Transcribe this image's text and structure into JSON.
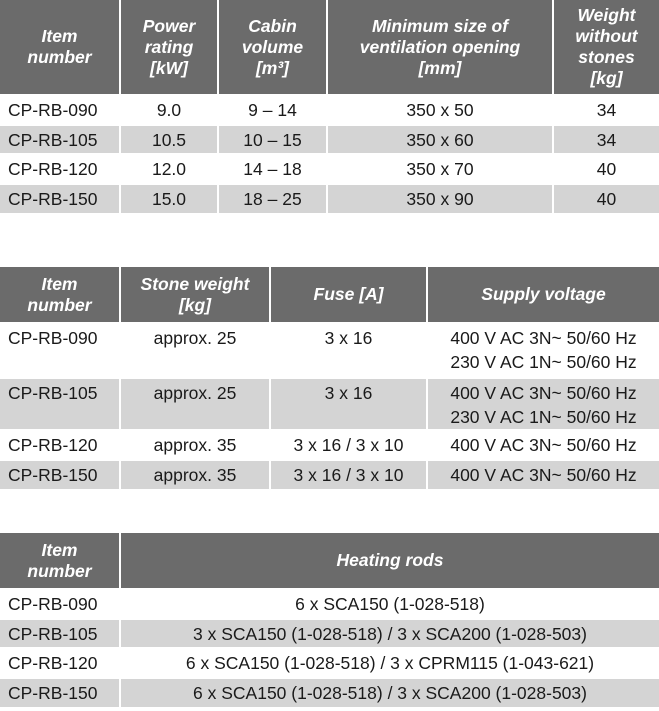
{
  "colors": {
    "header_bg": "#6b6b6b",
    "alt_row_bg": "#d4d4d4",
    "header_text": "#ffffff"
  },
  "tables": [
    {
      "headers": [
        [
          "Item",
          "number"
        ],
        [
          "Power",
          "rating",
          "[kW]"
        ],
        [
          "Cabin",
          "volume",
          "[m³]"
        ],
        [
          "Minimum size of",
          "ventilation opening",
          "[mm]"
        ],
        [
          "Weight",
          "without",
          "stones",
          "[kg]"
        ]
      ],
      "rows": [
        [
          [
            "CP-RB-090"
          ],
          [
            "9.0"
          ],
          [
            "9 – 14"
          ],
          [
            "350 x 50"
          ],
          [
            "34"
          ]
        ],
        [
          [
            "CP-RB-105"
          ],
          [
            "10.5"
          ],
          [
            "10 – 15"
          ],
          [
            "350 x 60"
          ],
          [
            "34"
          ]
        ],
        [
          [
            "CP-RB-120"
          ],
          [
            "12.0"
          ],
          [
            "14 – 18"
          ],
          [
            "350 x 70"
          ],
          [
            "40"
          ]
        ],
        [
          [
            "CP-RB-150"
          ],
          [
            "15.0"
          ],
          [
            "18 – 25"
          ],
          [
            "350 x 90"
          ],
          [
            "40"
          ]
        ]
      ]
    },
    {
      "headers": [
        [
          "Item",
          "number"
        ],
        [
          "Stone weight",
          "[kg]"
        ],
        [
          "Fuse [A]"
        ],
        [
          "Supply voltage"
        ]
      ],
      "rows": [
        [
          [
            "CP-RB-090"
          ],
          [
            "approx. 25"
          ],
          [
            "3 x 16"
          ],
          [
            "400 V AC 3N~ 50/60 Hz",
            "230 V AC 1N~ 50/60 Hz"
          ]
        ],
        [
          [
            "CP-RB-105"
          ],
          [
            "approx. 25"
          ],
          [
            "3 x 16"
          ],
          [
            "400 V AC 3N~ 50/60 Hz",
            "230 V AC 1N~ 50/60 Hz"
          ]
        ],
        [
          [
            "CP-RB-120"
          ],
          [
            "approx. 35"
          ],
          [
            "3 x 16 / 3 x 10"
          ],
          [
            "400 V AC 3N~ 50/60 Hz"
          ]
        ],
        [
          [
            "CP-RB-150"
          ],
          [
            "approx. 35"
          ],
          [
            "3 x 16 / 3 x 10"
          ],
          [
            "400 V AC 3N~ 50/60 Hz"
          ]
        ]
      ]
    },
    {
      "headers": [
        [
          "Item",
          "number"
        ],
        [
          "Heating rods"
        ]
      ],
      "rows": [
        [
          [
            "CP-RB-090"
          ],
          [
            "6 x SCA150 (1-028-518)"
          ]
        ],
        [
          [
            "CP-RB-105"
          ],
          [
            "3 x SCA150 (1-028-518) / 3 x SCA200 (1-028-503)"
          ]
        ],
        [
          [
            "CP-RB-120"
          ],
          [
            "6 x SCA150 (1-028-518) / 3 x CPRM115 (1-043-621)"
          ]
        ],
        [
          [
            "CP-RB-150"
          ],
          [
            "6 x SCA150 (1-028-518) / 3 x SCA200 (1-028-503)"
          ]
        ]
      ]
    }
  ]
}
